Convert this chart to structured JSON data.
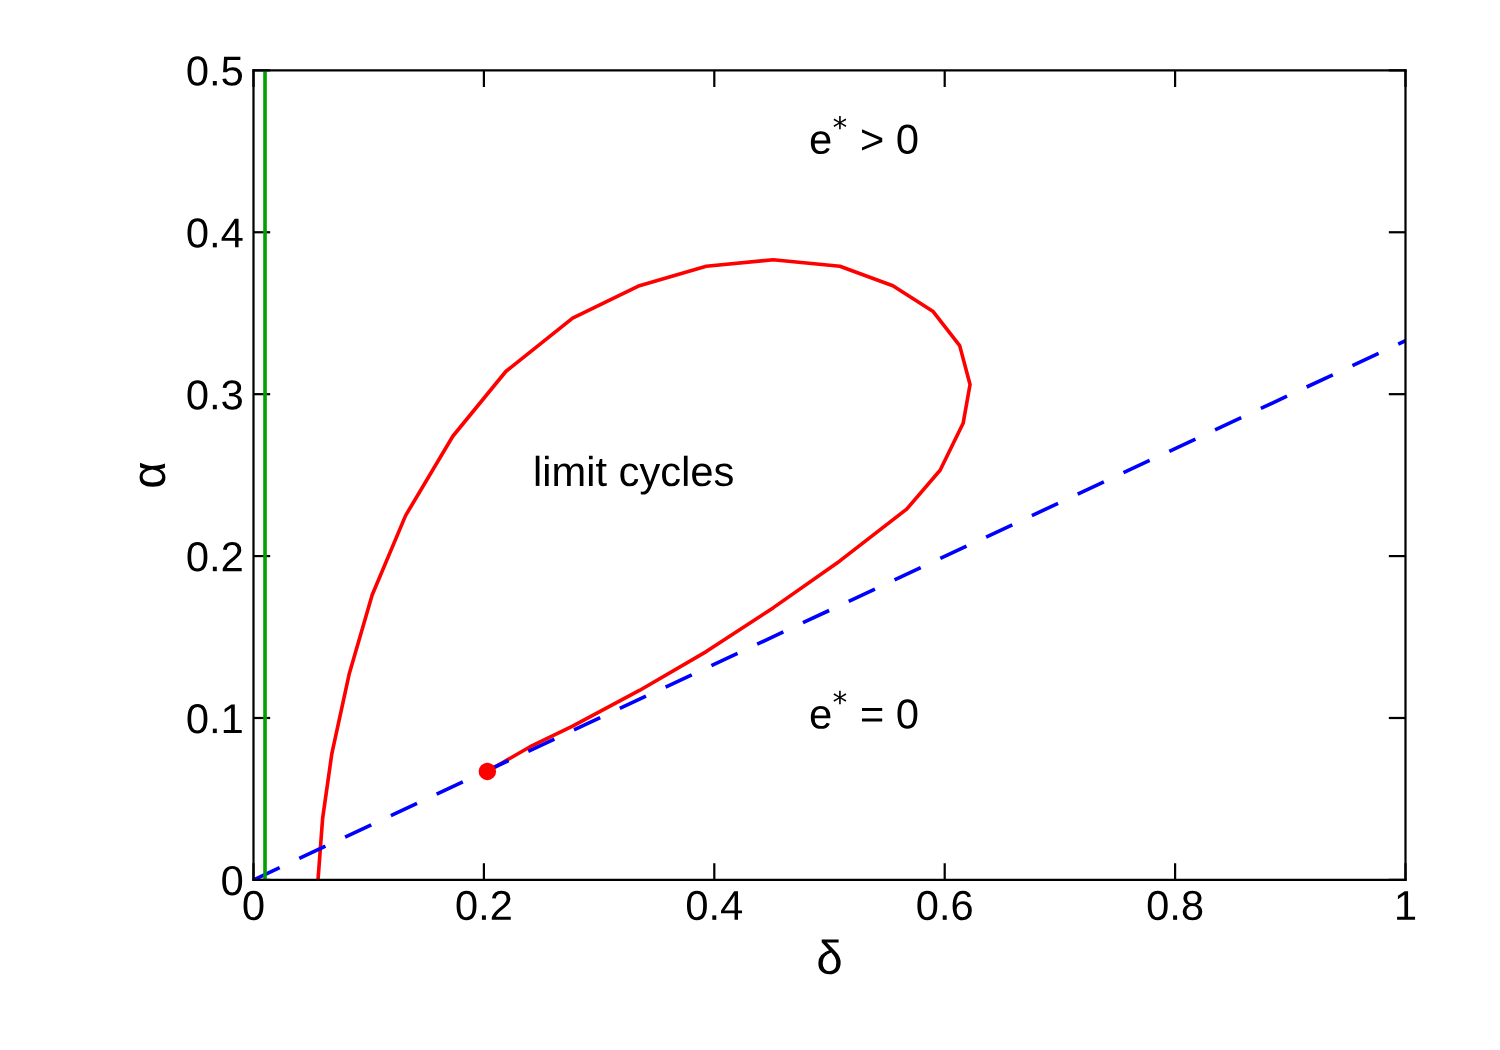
{
  "chart_data": {
    "type": "line",
    "xlabel": "δ",
    "ylabel": "α",
    "xlim": [
      0,
      1
    ],
    "ylim": [
      0,
      0.5
    ],
    "xticks": [
      0,
      0.2,
      0.4,
      0.6,
      0.8,
      1
    ],
    "yticks": [
      0,
      0.1,
      0.2,
      0.3,
      0.4,
      0.5
    ],
    "grid": false,
    "legend": false,
    "series": [
      {
        "color": "#ff0000",
        "line_style": "solid",
        "x": [
          0.056,
          0.06,
          0.068,
          0.083,
          0.103,
          0.132,
          0.173,
          0.219,
          0.277,
          0.335,
          0.393,
          0.451,
          0.509,
          0.555,
          0.59,
          0.613,
          0.622,
          0.616,
          0.596,
          0.567,
          0.509,
          0.451,
          0.393,
          0.335,
          0.277,
          0.242,
          0.203
        ],
        "values": [
          0,
          0.038,
          0.078,
          0.127,
          0.176,
          0.225,
          0.274,
          0.314,
          0.347,
          0.367,
          0.379,
          0.383,
          0.379,
          0.367,
          0.351,
          0.33,
          0.306,
          0.282,
          0.253,
          0.229,
          0.197,
          0.168,
          0.141,
          0.117,
          0.095,
          0.083,
          0.067
        ]
      },
      {
        "color": "#0000ff",
        "line_style": "dashed",
        "x": [
          0,
          1
        ],
        "values": [
          0,
          0.333
        ]
      },
      {
        "type": "scatter",
        "color": "#ff0000",
        "marker": "circle",
        "x": [
          0.203
        ],
        "values": [
          0.067
        ]
      }
    ],
    "ref_lines": [
      {
        "axis": "x",
        "value": 0.01,
        "color": "#00a000",
        "line_style": "solid"
      }
    ],
    "annotations": [
      "e$^{*}$ > 0",
      "limit cycles",
      "e$^{*}$ = 0"
    ]
  }
}
